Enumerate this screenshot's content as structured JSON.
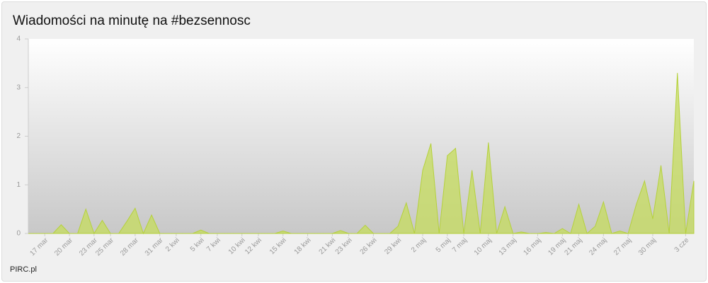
{
  "chart_data": {
    "type": "area",
    "title": "Wiadomości na minutę na #bezsennosc",
    "source": "PIRC.pl",
    "categories": [
      null,
      null,
      "17 mar",
      null,
      null,
      "20 mar",
      null,
      null,
      "23 mar",
      null,
      "25 mar",
      null,
      null,
      "28 mar",
      null,
      null,
      "31 mar",
      null,
      "2 kwi",
      null,
      null,
      "5 kwi",
      null,
      "7 kwi",
      null,
      null,
      "10 kwi",
      null,
      "12 kwi",
      null,
      null,
      "15 kwi",
      null,
      null,
      "18 kwi",
      null,
      null,
      "21 kwi",
      null,
      "23 kwi",
      null,
      null,
      "26 kwi",
      null,
      null,
      "29 kwi",
      null,
      null,
      "2 maj",
      null,
      null,
      "5 maj",
      null,
      "7 maj",
      null,
      null,
      "10 maj",
      null,
      null,
      "13 maj",
      null,
      null,
      "16 maj",
      null,
      null,
      "19 maj",
      null,
      "21 maj",
      null,
      null,
      "24 maj",
      null,
      null,
      "27 maj",
      null,
      null,
      "30 maj",
      null,
      null,
      null,
      "3 cze",
      null
    ],
    "values": [
      0,
      0,
      0,
      0,
      0.18,
      0,
      0,
      0.5,
      0,
      0.27,
      0,
      0,
      0.25,
      0.52,
      0,
      0.38,
      0,
      0,
      0,
      0,
      0,
      0.07,
      0,
      0,
      0,
      0,
      0,
      0,
      0,
      0,
      0,
      0.05,
      0,
      0,
      0,
      0,
      0,
      0,
      0.06,
      0,
      0,
      0.17,
      0,
      0,
      0,
      0.15,
      0.63,
      0,
      1.3,
      1.85,
      0,
      1.6,
      1.75,
      0,
      1.3,
      0,
      1.87,
      0,
      0.55,
      0,
      0.03,
      0,
      0,
      0.02,
      0,
      0.1,
      0,
      0.6,
      0,
      0.15,
      0.65,
      0,
      0.05,
      0,
      0.6,
      1.08,
      0.3,
      1.4,
      0,
      3.3,
      0,
      1.08
    ],
    "color": "#c5dc5c",
    "ylim": [
      0,
      4
    ],
    "yticks": [
      0,
      1,
      2,
      3,
      4
    ]
  }
}
